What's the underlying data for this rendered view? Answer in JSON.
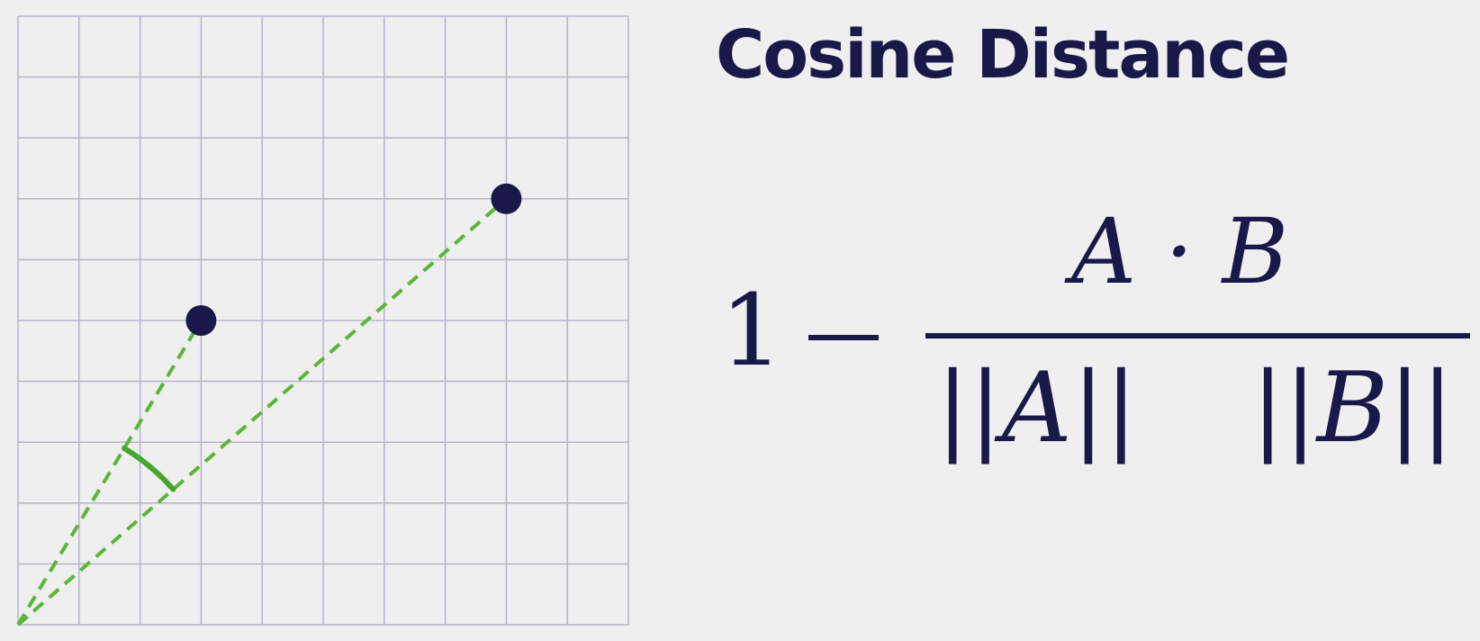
{
  "title": "Cosine Distance",
  "formula": {
    "one": "1",
    "numerator": "A · B",
    "denominator_a": "||A||",
    "denominator_b": "||B||"
  },
  "diagram": {
    "grid": {
      "cols": 10,
      "rows": 10
    },
    "point_a": {
      "x": 3,
      "y": 5
    },
    "point_b": {
      "x": 8,
      "y": 7
    },
    "colors": {
      "grid": "#b9b7cc",
      "point": "#1a1848",
      "vector": "#5cb53a",
      "angle": "#47a62e"
    }
  }
}
